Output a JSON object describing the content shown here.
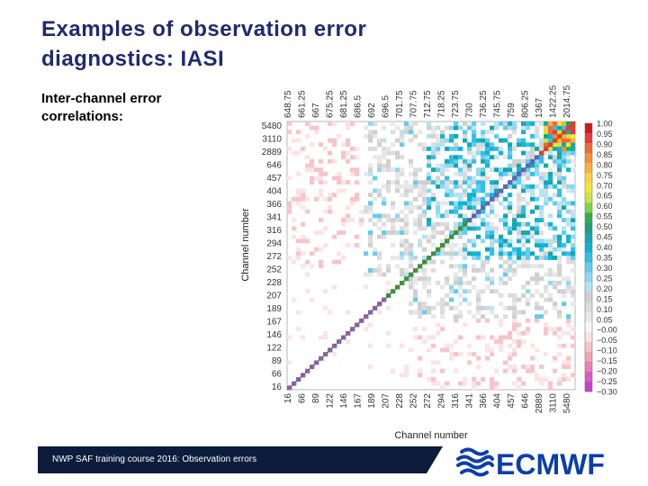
{
  "slide": {
    "title_lines": [
      "Examples of observation error",
      "diagnostics: IASI"
    ],
    "subtitle_lines": [
      "Inter-channel error",
      "correlations:"
    ],
    "footer": "NWP SAF training course 2016: Observation errors",
    "logo_text": "ECMWF",
    "colors": {
      "title": "#1f2a6e",
      "footer_band": "#0b1c3d",
      "logo": "#0b3ea8"
    }
  },
  "chart_data": {
    "type": "heatmap",
    "xlabel": "Channel number",
    "ylabel": "Channel number",
    "x_top_ticks": [
      "648.75",
      "661.25",
      "667",
      "675.25",
      "681.25",
      "686.5",
      "692",
      "696.5",
      "701.75",
      "707.75",
      "712.75",
      "718.25",
      "723.75",
      "730",
      "736.25",
      "745.75",
      "759",
      "806.25",
      "1367",
      "1422.25",
      "2014.75"
    ],
    "x_bottom_ticks": [
      "16",
      "66",
      "89",
      "122",
      "146",
      "167",
      "189",
      "207",
      "228",
      "252",
      "272",
      "294",
      "316",
      "341",
      "366",
      "404",
      "457",
      "646",
      "2889",
      "3110",
      "5480"
    ],
    "y_ticks": [
      "16",
      "66",
      "89",
      "122",
      "146",
      "167",
      "189",
      "207",
      "228",
      "252",
      "272",
      "294",
      "316",
      "341",
      "366",
      "404",
      "457",
      "646",
      "2889",
      "3110",
      "5480"
    ],
    "colorbar": {
      "labels": [
        "1.00",
        "0.95",
        "0.90",
        "0.85",
        "0.80",
        "0.75",
        "0.70",
        "0.65",
        "0.60",
        "0.55",
        "0.50",
        "0.45",
        "0.40",
        "0.35",
        "0.30",
        "0.25",
        "0.20",
        "0.15",
        "0.10",
        "0.05",
        "−0.00",
        "−0.05",
        "−0.10",
        "−0.15",
        "−0.20",
        "−0.25",
        "−0.30"
      ],
      "colors": [
        "#d01820",
        "#e83a3a",
        "#f06a3a",
        "#f58f3a",
        "#f8b23c",
        "#fad244",
        "#f3e838",
        "#c8e642",
        "#7fd24a",
        "#2fb04c",
        "#1ea07a",
        "#16a6b0",
        "#10b4d4",
        "#30c0e4",
        "#62cdee",
        "#8fd8f2",
        "#b6e3f2",
        "#d0d0d0",
        "#dcdcdc",
        "#e8e8e8",
        "#f7f7f7",
        "#fbe3e6",
        "#f6c4cb",
        "#f2a4b8",
        "#ee7fb6",
        "#de5cc2",
        "#c443cc"
      ]
    }
  }
}
